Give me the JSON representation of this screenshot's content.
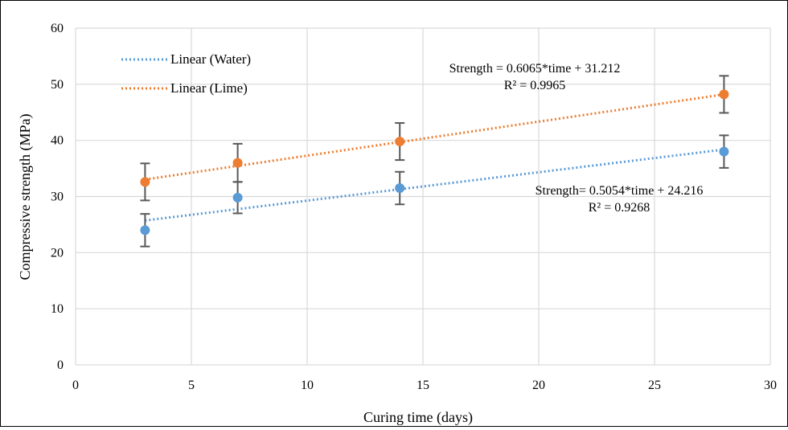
{
  "chart_data": {
    "type": "scatter",
    "title": "",
    "xlabel": "Curing time (days)",
    "ylabel": "Compressive strength (MPa)",
    "xlim": [
      0,
      30
    ],
    "ylim": [
      0,
      60
    ],
    "xticks": [
      0,
      5,
      10,
      15,
      20,
      25,
      30
    ],
    "yticks": [
      0,
      10,
      20,
      30,
      40,
      50,
      60
    ],
    "grid": true,
    "legend_position": "top-left",
    "series": [
      {
        "key": "water",
        "color": "#5b9bd5",
        "x": [
          3,
          7,
          14,
          28
        ],
        "y": [
          24,
          29.8,
          31.5,
          38
        ],
        "error": [
          2.9,
          2.8,
          2.9,
          2.9
        ],
        "trendline": {
          "legend": "Linear  (Water)",
          "slope": 0.5054,
          "intercept": 24.216,
          "equation": "Strength= 0.5054*time + 24.216",
          "r2": "R² = 0.9268"
        }
      },
      {
        "key": "lime",
        "color": "#ed7d31",
        "x": [
          3,
          7,
          14,
          28
        ],
        "y": [
          32.6,
          36,
          39.8,
          48.2
        ],
        "error": [
          3.3,
          3.4,
          3.3,
          3.3
        ],
        "trendline": {
          "legend": "Linear  (Lime)",
          "slope": 0.6065,
          "intercept": 31.212,
          "equation": "Strength = 0.6065*time + 31.212",
          "r2": "R² = 0.9965"
        }
      }
    ]
  },
  "colors": {
    "grid": "#d9d9d9",
    "error_bar": "#595959",
    "axis": "#bfbfbf"
  }
}
